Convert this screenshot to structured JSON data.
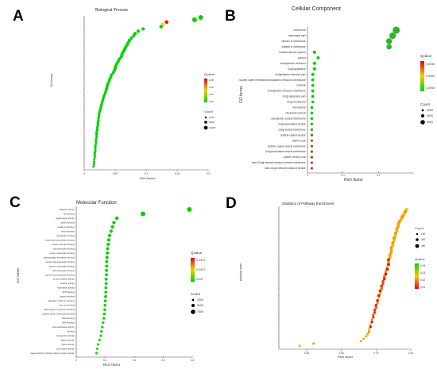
{
  "figure": {
    "panels": [
      {
        "letter": "A",
        "title": "Biological Process"
      },
      {
        "letter": "B",
        "title": "Cellular Component"
      },
      {
        "letter": "C",
        "title": "Molecular Function"
      },
      {
        "letter": "D",
        "title": "Statistics of Pathway Enrichment"
      }
    ]
  },
  "colors": {
    "low": "#00d200",
    "mid": "#f0d000",
    "high": "#e8001c",
    "dot": "#2ab52a"
  },
  "chart_data": [
    {
      "type": "scatter",
      "title": "Biological Process",
      "xlabel": "Rich factor",
      "ylabel": "GO terms",
      "xlim": [
        0,
        0.2
      ],
      "xticks": [
        "0",
        "0.05",
        "0.1",
        "0.15",
        "0.2"
      ],
      "legend": {
        "color_title": "Qvalue",
        "color_ticks": [
          "0.08",
          "0.06",
          "0.04",
          "0.02"
        ],
        "size_title": "Count",
        "size_ticks": [
          "2000",
          "5000",
          "10000"
        ],
        "placement": "right"
      },
      "series": [
        {
          "x": [
            0.188,
            0.178,
            0.133,
            0.127,
            0.124,
            0.095,
            0.087,
            0.082,
            0.08,
            0.076,
            0.073,
            0.071,
            0.069,
            0.067,
            0.065,
            0.063,
            0.061,
            0.06,
            0.057,
            0.055,
            0.053,
            0.051,
            0.05,
            0.049,
            0.047,
            0.044,
            0.043,
            0.041,
            0.04,
            0.038,
            0.037,
            0.036,
            0.035,
            0.034,
            0.032,
            0.031,
            0.03,
            0.029,
            0.028,
            0.027,
            0.026,
            0.025,
            0.024,
            0.024,
            0.023,
            0.023,
            0.022,
            0.022,
            0.021,
            0.021,
            0.02,
            0.02,
            0.02,
            0.019,
            0.019,
            0.019,
            0.018,
            0.018,
            0.018,
            0.017,
            0.017,
            0.017,
            0.016,
            0.016,
            0.016,
            0.015
          ]
        }
      ]
    },
    {
      "type": "scatter",
      "title": "Cellular Component",
      "xlabel": "Rich factor",
      "ylabel": "GO terms",
      "xlim": [
        0,
        0.3
      ],
      "xticks": [
        "0",
        "0.1",
        "0.2"
      ],
      "legend": {
        "color_title": "Qvalue",
        "color_ticks": [
          "0.0096",
          "0.0094",
          "0.0092"
        ],
        "size_title": "Count",
        "size_ticks": [
          "2000",
          "4000",
          "6000"
        ],
        "placement": "right"
      },
      "categories": [
        "membrane",
        "membrane part",
        "intrinsic to membrane",
        "integral to membrane",
        "endomembrane system",
        "cytosol",
        "endoplasmic reticulum",
        "Golgi apparatus",
        "endoplasmic reticulum part",
        "nuclear outer membrane-endoplasmic reticulum membrane",
        "network",
        "endoplasmic reticulum membrane",
        "Golgi apparatus part",
        "Golgi membrane",
        "microtubule",
        "ribosomal subunit",
        "cytoplasmic vesicle membrane",
        "Golgi-associated vesicle",
        "Golgi vesicle membrane",
        "clathrin-coated vesicle",
        "clathrin coat",
        "clathrin-coated vesicle membrane",
        "Golgi-associated vesicle membrane",
        "clathrin vesicle coat",
        "trans-Golgi network transport vesicle membrane",
        "trans-Golgi network transport vesicle"
      ],
      "series": [
        {
          "x": [
            0.25,
            0.24,
            0.23,
            0.23,
            0.02,
            0.03,
            0.02,
            0.02,
            0.015,
            0.015,
            0.015,
            0.015,
            0.015,
            0.015,
            0.012,
            0.012,
            0.012,
            0.012,
            0.012,
            0.012,
            0.012,
            0.012,
            0.012,
            0.012,
            0.012,
            0.012
          ]
        }
      ]
    },
    {
      "type": "scatter",
      "title": "Molecular Function",
      "xlabel": "Rich factor",
      "ylabel": "GO terms",
      "xlim": [
        0,
        0.4
      ],
      "xticks": [
        "0",
        "0.1",
        "0.2",
        "0.3",
        "0.4"
      ],
      "legend": {
        "color_title": "Qvalue",
        "color_ticks": [
          "0.0474",
          "0.0472",
          "0.047"
        ],
        "size_title": "Count",
        "size_ticks": [
          "2000",
          "5000",
          "7500"
        ],
        "placement": "right"
      },
      "categories": [
        "catalytic activity",
        "ion binding",
        "transferase activity",
        "cation binding",
        "metal ion binding",
        "anion binding",
        "nucleotide binding",
        "nucleoside phosphate binding",
        "small molecule binding",
        "ribonucleotide binding",
        "purine nucleotide binding",
        "carbohydrate derivative binding",
        "purine ribonucleotide binding",
        "purine nucleoside binding",
        "ribonucleoside binding",
        "purine ribonucleoside binding",
        "protein kinase activity",
        "kinase activity",
        "hydrolase activity",
        "ATP binding",
        "protein binding",
        "transition metal ion binding",
        "zinc ion binding",
        "heterocyclic compound binding",
        "organic cyclic compound binding",
        "RNA binding",
        "DNA binding",
        "oxidoreductase activity",
        "binding",
        "transporter activity",
        "ligase activity",
        "lyase activity",
        "isomerase activity",
        "ligase activity, forming carbon-oxygen bonds"
      ],
      "series": [
        {
          "x": [
            0.39,
            0.23,
            0.14,
            0.13,
            0.125,
            0.12,
            0.115,
            0.112,
            0.11,
            0.108,
            0.107,
            0.106,
            0.105,
            0.105,
            0.104,
            0.104,
            0.103,
            0.103,
            0.102,
            0.102,
            0.101,
            0.1,
            0.099,
            0.098,
            0.097,
            0.095,
            0.093,
            0.09,
            0.087,
            0.085,
            0.08,
            0.075,
            0.072,
            0.07
          ]
        }
      ]
    },
    {
      "type": "scatter",
      "title": "Statistics of Pathway Enrichment",
      "xlabel": "Rich factor",
      "ylabel": "pathway name",
      "xlim": [
        0.05,
        1.0
      ],
      "xticks": [
        "0.25",
        "0.50",
        "0.75",
        "1.00"
      ],
      "legend": {
        "color_title": "Qvalue",
        "color_ticks": [
          "0.04",
          "0.03",
          "0.02",
          "0.01"
        ],
        "size_title": "Count",
        "size_ticks": [
          "150",
          "300",
          "450"
        ],
        "placement": "right"
      },
      "series": [
        {
          "x": [
            0.97,
            0.96,
            0.95,
            0.94,
            0.93,
            0.92,
            0.91,
            0.91,
            0.9,
            0.9,
            0.89,
            0.89,
            0.88,
            0.88,
            0.87,
            0.87,
            0.86,
            0.86,
            0.86,
            0.85,
            0.85,
            0.84,
            0.84,
            0.84,
            0.83,
            0.83,
            0.82,
            0.82,
            0.81,
            0.81,
            0.8,
            0.8,
            0.79,
            0.79,
            0.78,
            0.78,
            0.77,
            0.77,
            0.76,
            0.76,
            0.75,
            0.75,
            0.74,
            0.74,
            0.73,
            0.73,
            0.72,
            0.72,
            0.71,
            0.71,
            0.7,
            0.7,
            0.69,
            0.68,
            0.66,
            0.64,
            0.3,
            0.2
          ]
        }
      ]
    }
  ]
}
